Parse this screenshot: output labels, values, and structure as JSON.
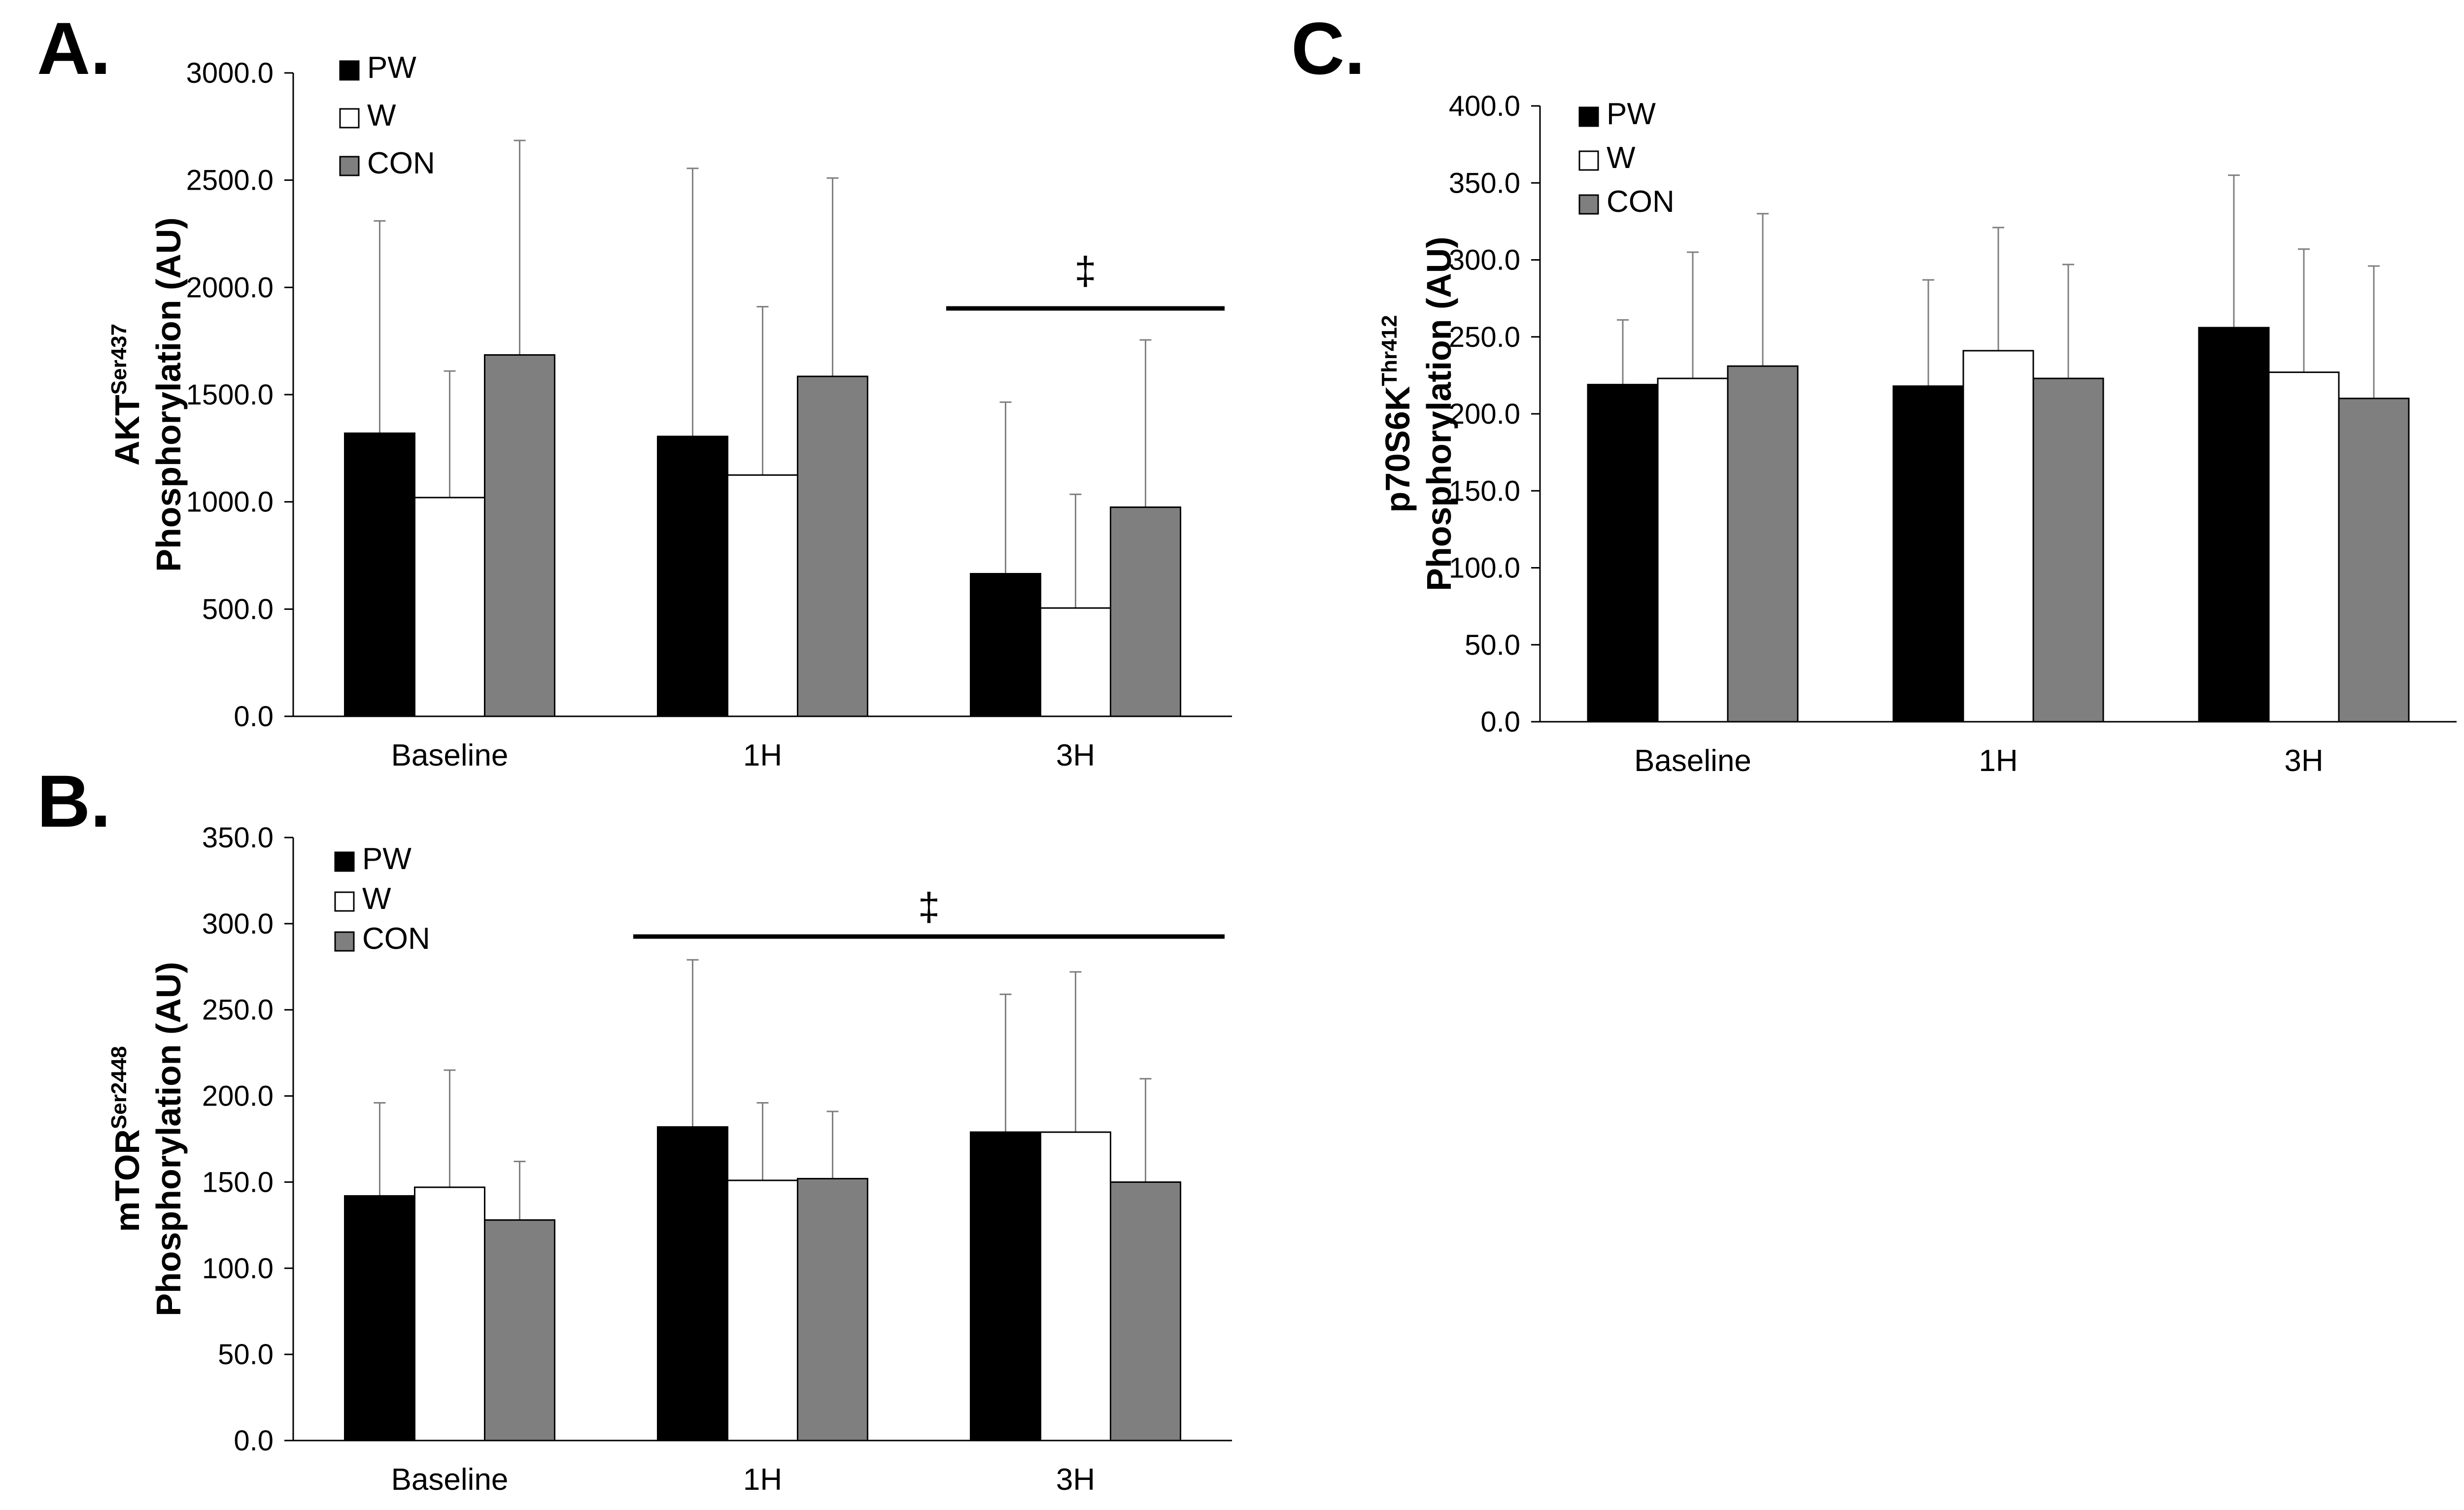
{
  "figure": {
    "series_colors": {
      "PW": "#000000",
      "W": "#ffffff",
      "CON": "#7f7f7f"
    }
  },
  "chart_data": [
    {
      "panel": "A.",
      "type": "bar",
      "ylabel": {
        "line1_main": "AKT",
        "line1_sup": "Ser437",
        "line2": "Phosphorylation (AU)"
      },
      "categories": [
        "Baseline",
        "1H",
        "3H"
      ],
      "ylim": [
        0,
        3000
      ],
      "yticks": [
        0,
        500,
        1000,
        1500,
        2000,
        2500,
        3000
      ],
      "ytick_labels": [
        "0.0",
        "500.0",
        "1000.0",
        "1500.0",
        "2000.0",
        "2500.0",
        "3000.0"
      ],
      "series": [
        {
          "name": "PW",
          "values": [
            1320,
            1305,
            665
          ],
          "errors": [
            990,
            1250,
            800
          ]
        },
        {
          "name": "W",
          "values": [
            1020,
            1125,
            505
          ],
          "errors": [
            590,
            785,
            530
          ]
        },
        {
          "name": "CON",
          "values": [
            1685,
            1585,
            975
          ],
          "errors": [
            1000,
            925,
            780
          ]
        }
      ],
      "legend": {
        "position": "top-left",
        "labels": [
          "PW",
          "W",
          "CON"
        ]
      },
      "significance": [
        {
          "symbol": "‡",
          "from_category": 2,
          "to_category": 2,
          "level": 1910
        }
      ]
    },
    {
      "panel": "B.",
      "type": "bar",
      "ylabel": {
        "line1_main": "mTOR",
        "line1_sup": "Ser2448",
        "line2": "Phosphorylation (AU)"
      },
      "categories": [
        "Baseline",
        "1H",
        "3H"
      ],
      "ylim": [
        0,
        350
      ],
      "yticks": [
        0,
        50,
        100,
        150,
        200,
        250,
        300,
        350
      ],
      "ytick_labels": [
        "0.0",
        "50.0",
        "100.0",
        "150.0",
        "200.0",
        "250.0",
        "300.0",
        "350.0"
      ],
      "series": [
        {
          "name": "PW",
          "values": [
            142,
            182,
            179
          ],
          "errors": [
            54,
            97,
            80
          ]
        },
        {
          "name": "W",
          "values": [
            147,
            151,
            179
          ],
          "errors": [
            68,
            45,
            93
          ]
        },
        {
          "name": "CON",
          "values": [
            128,
            152,
            150
          ],
          "errors": [
            34,
            39,
            60
          ]
        }
      ],
      "legend": {
        "position": "top-left",
        "labels": [
          "PW",
          "W",
          "CON"
        ]
      },
      "significance": [
        {
          "symbol": "‡",
          "from_category": 1,
          "to_category": 2,
          "level": 292
        }
      ]
    },
    {
      "panel": "C.",
      "type": "bar",
      "ylabel": {
        "line1_main": "p70S6K",
        "line1_sup": "Thr412",
        "line2": "Phosphorylation (AU)"
      },
      "categories": [
        "Baseline",
        "1H",
        "3H"
      ],
      "ylim": [
        0,
        400
      ],
      "yticks": [
        0,
        50,
        100,
        150,
        200,
        250,
        300,
        350,
        400
      ],
      "ytick_labels": [
        "0.0",
        "50.0",
        "100.0",
        "150.0",
        "200.0",
        "250.0",
        "300.0",
        "350.0",
        "400.0"
      ],
      "series": [
        {
          "name": "PW",
          "values": [
            219,
            218,
            256
          ],
          "errors": [
            42,
            69,
            99
          ]
        },
        {
          "name": "W",
          "values": [
            223,
            241,
            227
          ],
          "errors": [
            82,
            80,
            80
          ]
        },
        {
          "name": "CON",
          "values": [
            231,
            223,
            210
          ],
          "errors": [
            99,
            74,
            86
          ]
        }
      ],
      "legend": {
        "position": "top-left",
        "labels": [
          "PW",
          "W",
          "CON"
        ]
      },
      "significance": []
    }
  ]
}
